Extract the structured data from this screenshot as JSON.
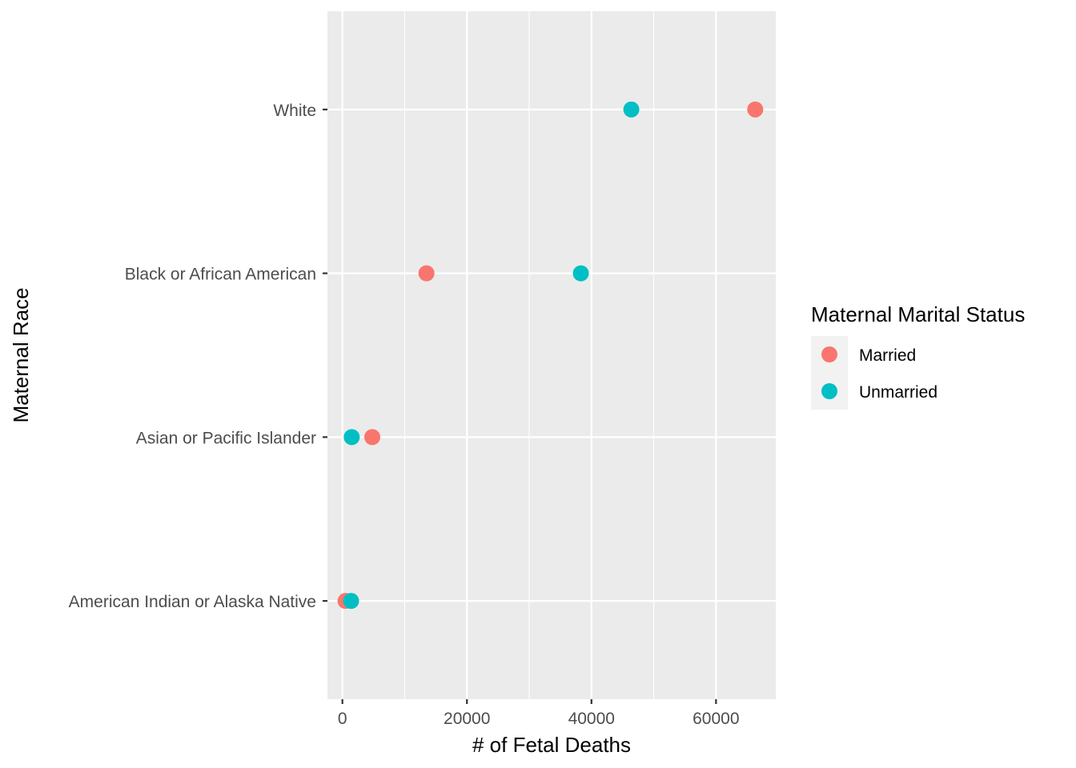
{
  "chart_data": {
    "type": "scatter",
    "title": "",
    "xlabel": "# of Fetal Deaths",
    "ylabel": "Maternal Race",
    "xlim": [
      -2400,
      69600
    ],
    "x_ticks": [
      0,
      20000,
      40000,
      60000
    ],
    "x_tick_labels": [
      "0",
      "20000",
      "40000",
      "60000"
    ],
    "categories": [
      "American Indian or Alaska Native",
      "Asian or Pacific Islander",
      "Black or African American",
      "White"
    ],
    "grid": true,
    "legend": {
      "title": "Maternal Marital Status",
      "position": "right"
    },
    "series": [
      {
        "name": "Married",
        "color": "#F8766D",
        "values": [
          500,
          4800,
          13500,
          66300
        ]
      },
      {
        "name": "Unmarried",
        "color": "#00BFC4",
        "values": [
          1400,
          1500,
          38300,
          46400
        ]
      }
    ]
  }
}
